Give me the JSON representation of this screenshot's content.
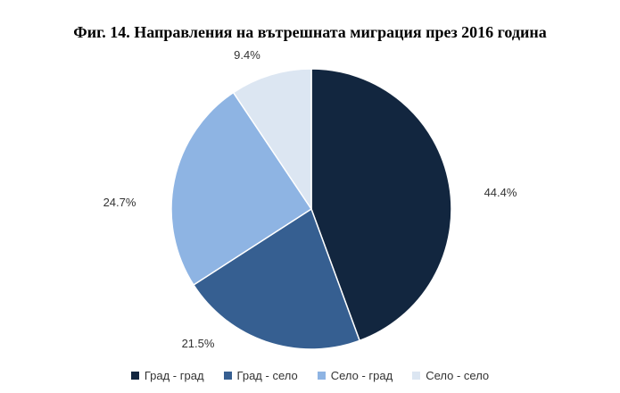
{
  "chart_data": {
    "type": "pie",
    "title": "Фиг. 14. Направления на вътрешната миграция през 2016 година",
    "slices": [
      {
        "name": "Град - град",
        "value": 44.4,
        "label": "44.4%",
        "color": "#12263f"
      },
      {
        "name": "Град - село",
        "value": 21.5,
        "label": "21.5%",
        "color": "#365f91"
      },
      {
        "name": "Село - град",
        "value": 24.7,
        "label": "24.7%",
        "color": "#8eb4e3"
      },
      {
        "name": "Село - село",
        "value": 9.4,
        "label": "9.4%",
        "color": "#dce6f2"
      }
    ],
    "start": "12 o'clock",
    "direction": "clockwise",
    "legend_position": "bottom"
  }
}
